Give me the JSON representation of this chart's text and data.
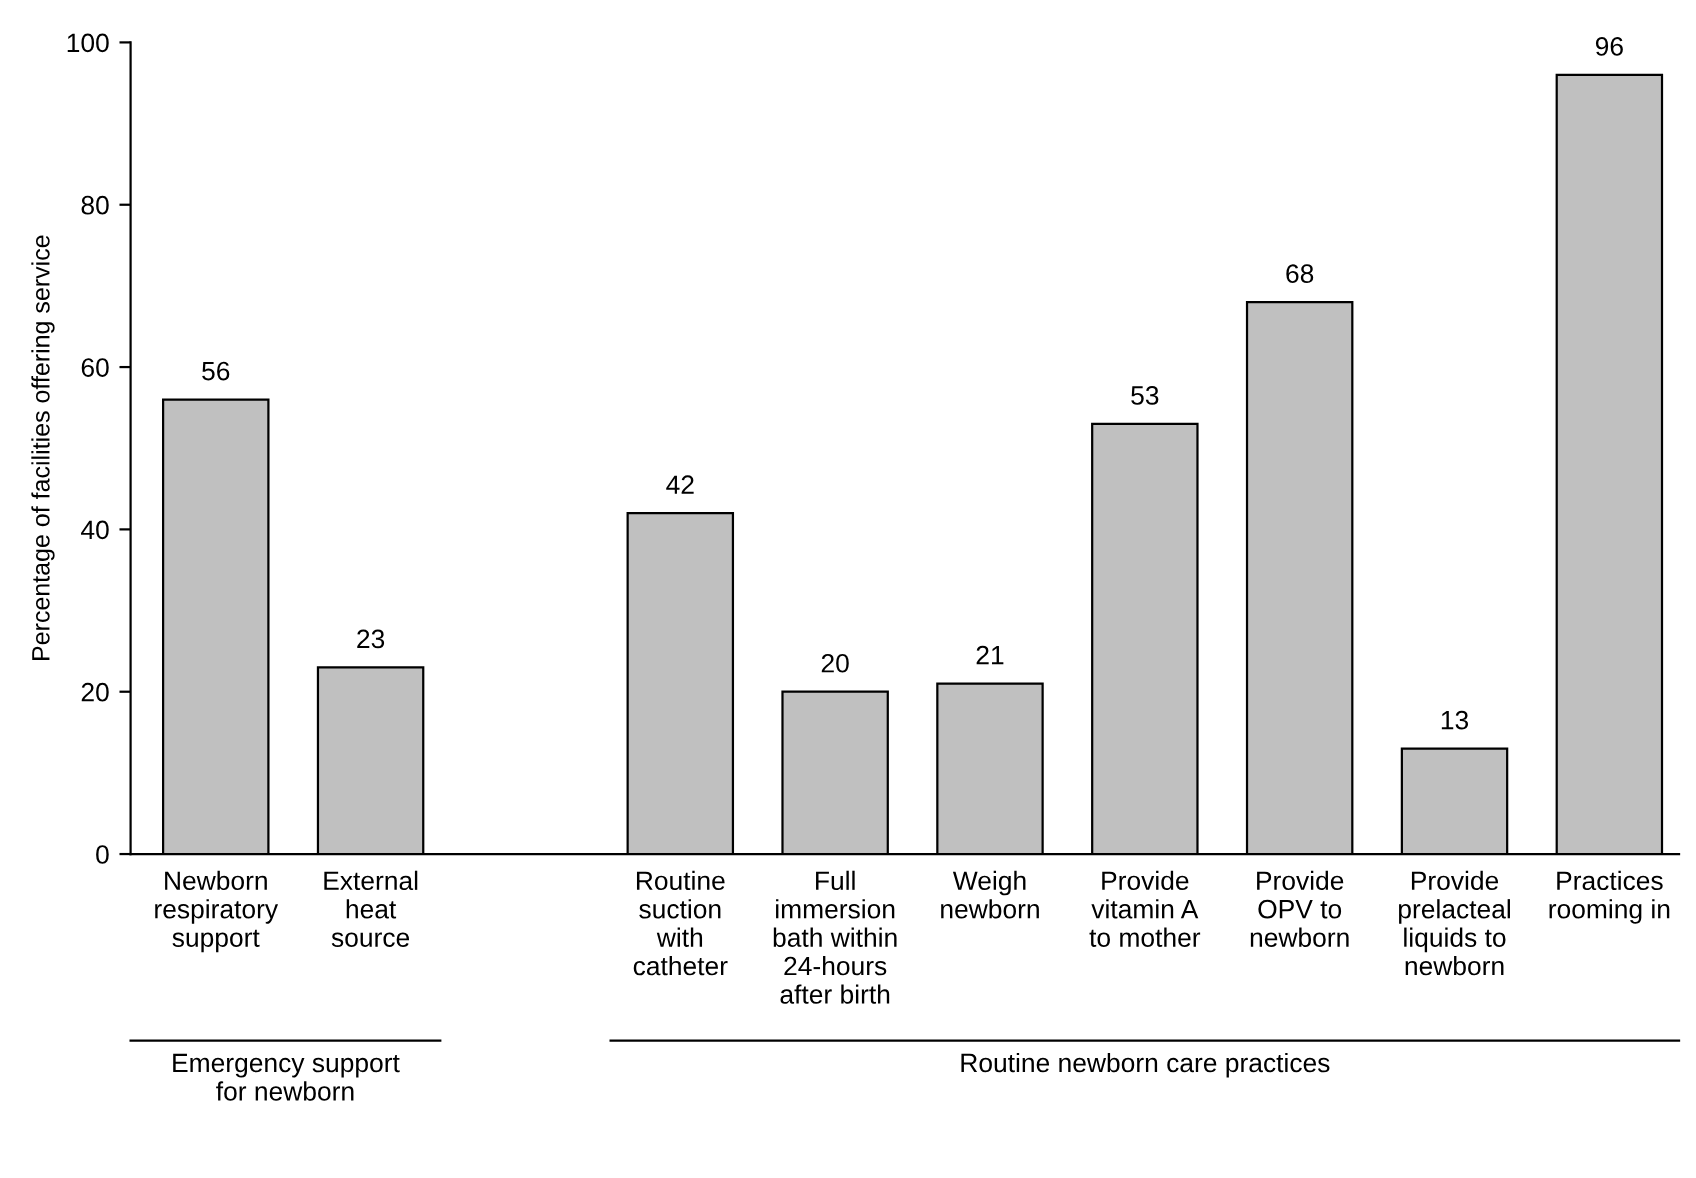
{
  "chart_data": {
    "type": "bar",
    "ylabel": "Percentage of facilities offering service",
    "categories": [
      "Newborn\nrespiratory\nsupport",
      "External\nheat\nsource",
      null,
      "Routine\nsuction\nwith\ncatheter",
      "Full\nimmersion\nbath within\n24-hours\nafter birth",
      "Weigh\nnewborn",
      "Provide\nvitamin A\nto mother",
      "Provide\nOPV to\nnewborn",
      "Provide\nprelacteal\nliquids to\nnewborn",
      "Practices\nrooming in"
    ],
    "values": [
      56,
      23,
      null,
      42,
      20,
      21,
      53,
      68,
      13,
      96
    ],
    "color": "#c0c0c0",
    "ylim": [
      0,
      100
    ],
    "yticks": [
      0,
      20,
      40,
      60,
      80,
      100
    ],
    "data_labels": true,
    "grid": false,
    "legend": false,
    "annotations": [
      "Emergency support\nfor newborn",
      "Routine newborn care practices"
    ]
  }
}
